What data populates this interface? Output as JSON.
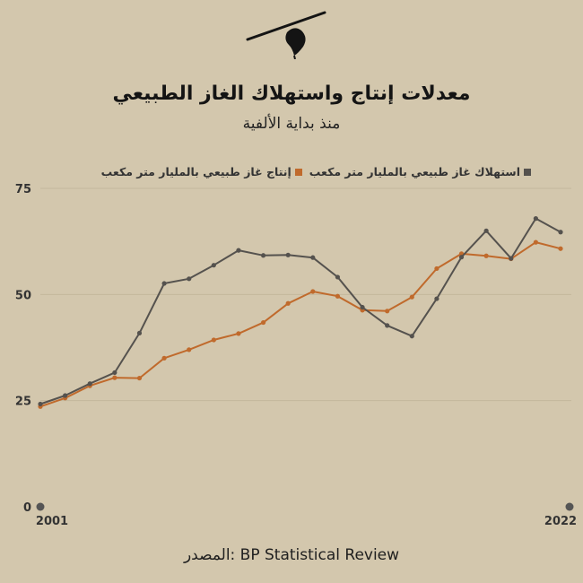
{
  "header": {
    "title": "معدلات إنتاج واستهلاك الغاز الطبيعي",
    "subtitle": "منذ بداية الألفية"
  },
  "logo": {
    "icon": "feather-quill-icon"
  },
  "source": {
    "text": "المصدر: BP Statistical Review"
  },
  "colors": {
    "background": "#d3c7ad",
    "consumption": "#55524e",
    "production": "#c06a2c",
    "grid": "#c3b79d"
  },
  "chart_data": {
    "type": "line",
    "x": [
      2001,
      2002,
      2003,
      2004,
      2005,
      2006,
      2007,
      2008,
      2009,
      2010,
      2011,
      2012,
      2013,
      2014,
      2015,
      2016,
      2017,
      2018,
      2019,
      2020,
      2021,
      2022
    ],
    "x_tick_labels": [
      "2001",
      "2022"
    ],
    "y_ticks": [
      0,
      25,
      50,
      75
    ],
    "ylim": [
      0,
      75
    ],
    "grid": true,
    "legend_position": "top-right",
    "series": [
      {
        "name": "استهلاك غاز طبيعي بالمليار متر مكعب",
        "color": "#55524e",
        "values": [
          24.2,
          26.2,
          29.0,
          31.6,
          40.9,
          52.6,
          53.7,
          56.9,
          60.4,
          59.2,
          59.3,
          58.7,
          54.1,
          47.0,
          42.7,
          40.2,
          49.0,
          58.8,
          65.0,
          58.5,
          67.9,
          64.7
        ]
      },
      {
        "name": "إنتاج غاز طبيعي بالمليار متر مكعب",
        "color": "#c06a2c",
        "values": [
          23.6,
          25.6,
          28.5,
          30.4,
          30.3,
          35.0,
          37.0,
          39.3,
          40.8,
          43.4,
          47.9,
          50.7,
          49.6,
          46.3,
          46.1,
          49.4,
          56.1,
          59.6,
          59.1,
          58.4,
          62.3,
          60.8
        ]
      }
    ]
  }
}
